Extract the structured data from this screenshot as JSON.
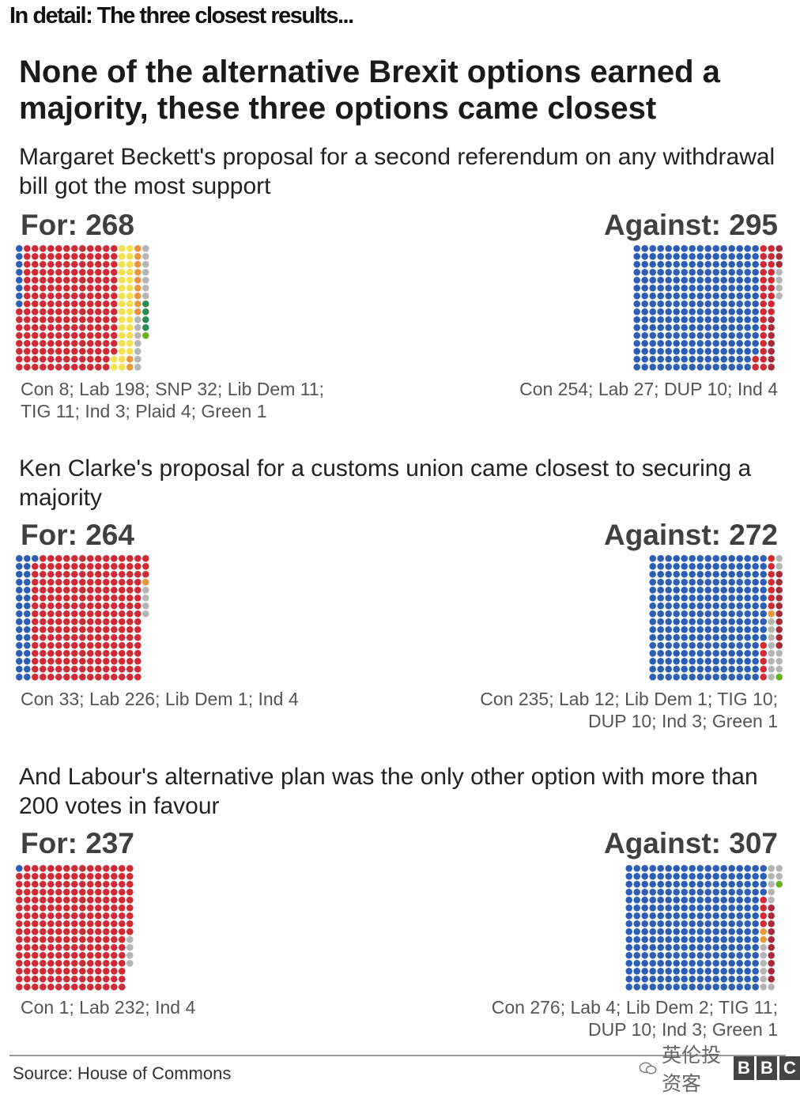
{
  "header": "In detail: The three closest results...",
  "title": "None of the alternative Brexit options earned a majority, these three options came closest",
  "colors": {
    "Con": "#2a5fb5",
    "Lab": "#cf2a36",
    "SNP": "#f4e04d",
    "Lib Dem": "#e9953c",
    "TIG": "#b5b5b5",
    "Ind": "#b5b5b5",
    "Plaid": "#2e8b57",
    "Green": "#6ab023",
    "DUP": "#a52a3a",
    "Other": "#c85fc0"
  },
  "sections": [
    {
      "subtitle": "Margaret Beckett's proposal for a second referendum on any withdrawal bill got the most support",
      "for_label": "For: 268",
      "against_label": "Against: 295",
      "for_breakdown": "Con 8; Lab 198; SNP 32; Lib Dem 11;\nTIG 11; Ind 3; Plaid 4; Green 1",
      "against_breakdown": "Con 254; Lab 27; DUP 10; Ind 4"
    },
    {
      "subtitle": "Ken Clarke's proposal for a customs union came closest to securing a majority",
      "for_label": "For: 264",
      "against_label": "Against: 272",
      "for_breakdown": "Con 33; Lab 226; Lib Dem 1; Ind 4",
      "against_breakdown": "Con 235; Lab 12; Lib Dem 1; TIG 10;\nDUP 10; Ind 3; Green 1"
    },
    {
      "subtitle": "And Labour's alternative plan was the only other option with more than 200 votes in favour",
      "for_label": "For: 237",
      "against_label": "Against: 307",
      "for_breakdown": "Con 1; Lab 232; Ind 4",
      "against_breakdown": "Con 276; Lab 4; Lib Dem 2; TIG 11;\nDUP 10; Ind 3; Green 1"
    }
  ],
  "chart_data": [
    {
      "type": "dot-matrix",
      "for": {
        "total": 268,
        "parties": [
          [
            "Con",
            8
          ],
          [
            "Lab",
            198
          ],
          [
            "SNP",
            32
          ],
          [
            "Lib Dem",
            11
          ],
          [
            "TIG",
            11
          ],
          [
            "Ind",
            3
          ],
          [
            "Plaid",
            4
          ],
          [
            "Green",
            1
          ]
        ]
      },
      "against": {
        "total": 295,
        "parties": [
          [
            "Con",
            254
          ],
          [
            "Lab",
            27
          ],
          [
            "DUP",
            10
          ],
          [
            "Ind",
            4
          ]
        ]
      }
    },
    {
      "type": "dot-matrix",
      "for": {
        "total": 264,
        "parties": [
          [
            "Con",
            33
          ],
          [
            "Lab",
            226
          ],
          [
            "Lib Dem",
            1
          ],
          [
            "Ind",
            4
          ]
        ]
      },
      "against": {
        "total": 272,
        "parties": [
          [
            "Con",
            235
          ],
          [
            "Lab",
            12
          ],
          [
            "Lib Dem",
            1
          ],
          [
            "TIG",
            10
          ],
          [
            "DUP",
            10
          ],
          [
            "Ind",
            3
          ],
          [
            "Green",
            1
          ]
        ]
      }
    },
    {
      "type": "dot-matrix",
      "for": {
        "total": 237,
        "parties": [
          [
            "Con",
            1
          ],
          [
            "Lab",
            232
          ],
          [
            "Ind",
            4
          ]
        ]
      },
      "against": {
        "total": 307,
        "parties": [
          [
            "Con",
            276
          ],
          [
            "Lab",
            4
          ],
          [
            "Lib Dem",
            2
          ],
          [
            "TIG",
            11
          ],
          [
            "DUP",
            10
          ],
          [
            "Ind",
            3
          ],
          [
            "Green",
            1
          ]
        ]
      }
    }
  ],
  "source": "Source: House of Commons",
  "watermark": {
    "text": "英伦投资客",
    "logo": [
      "B",
      "B",
      "C"
    ]
  }
}
